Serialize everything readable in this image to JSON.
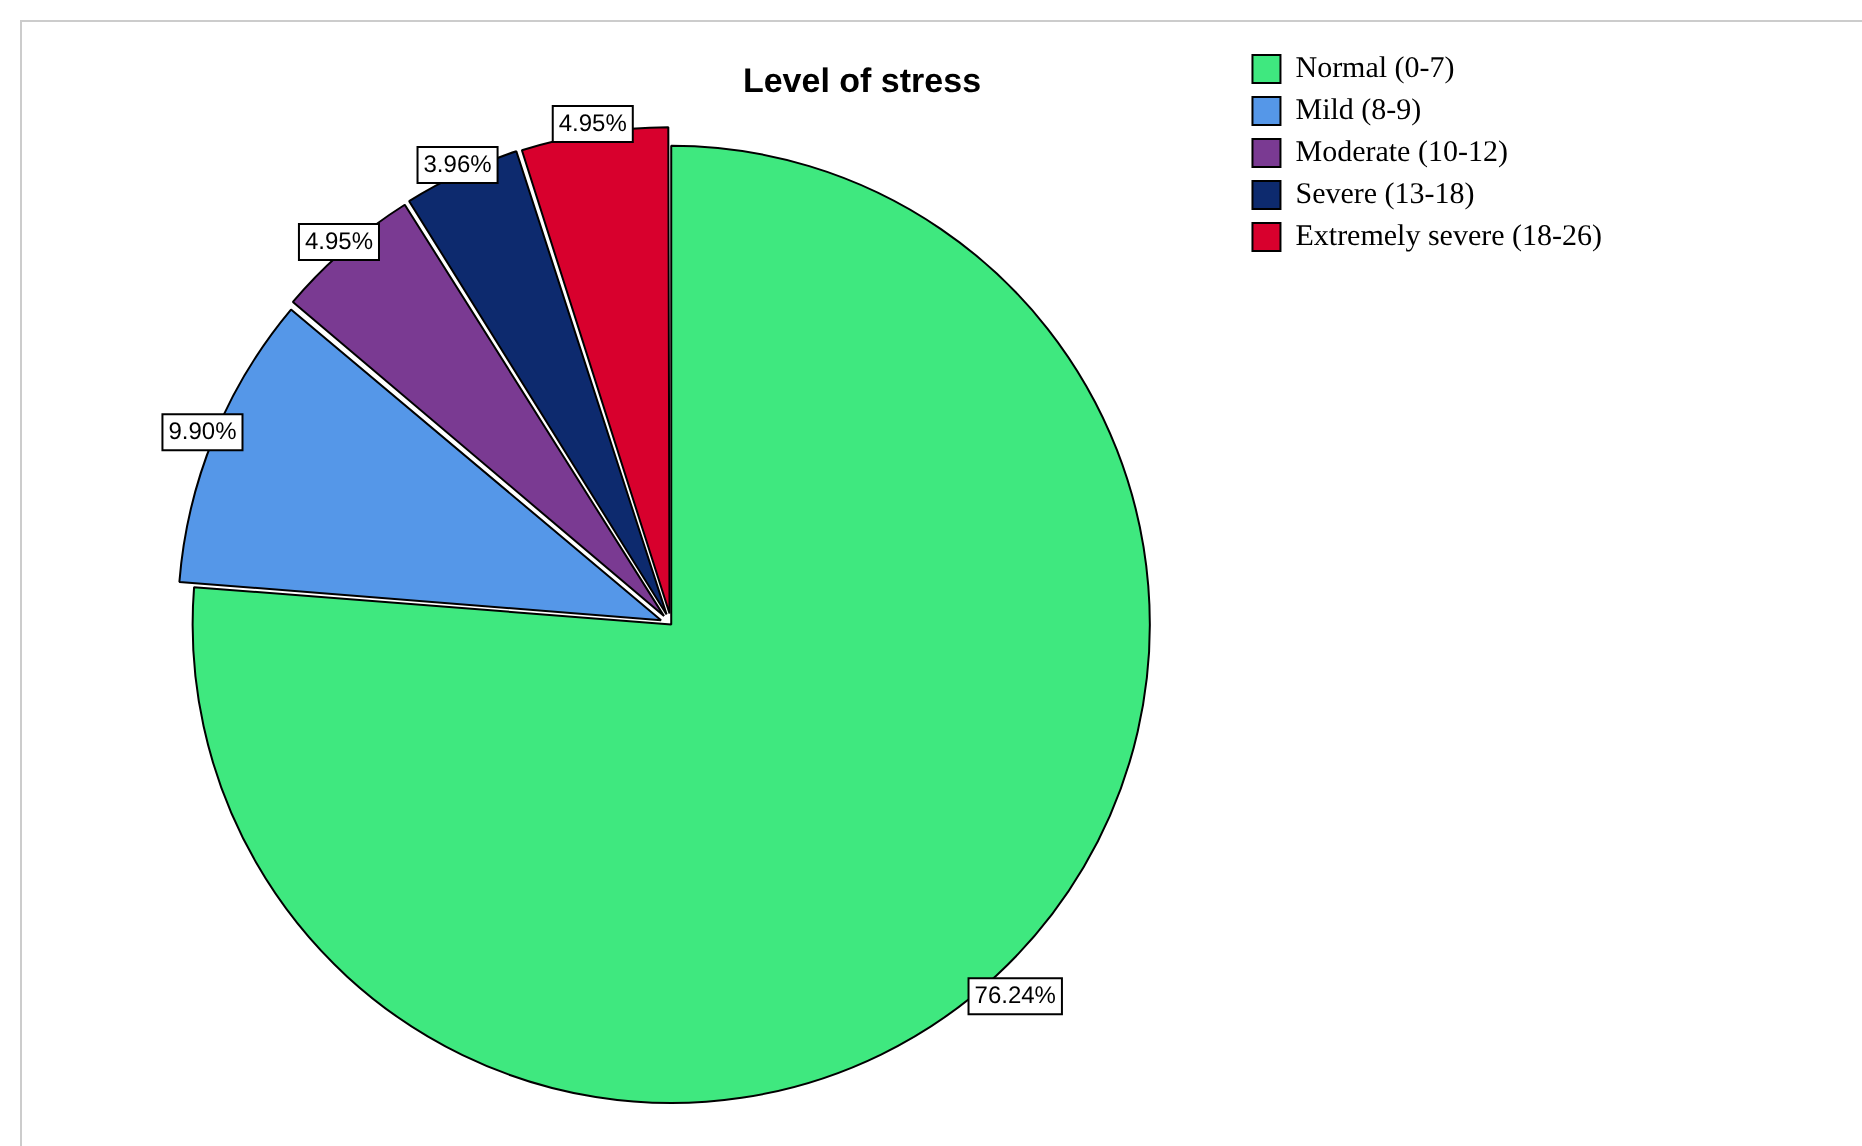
{
  "chart_data": {
    "type": "pie",
    "title": "Level of stress",
    "categories": [
      "Normal (0-7)",
      "Mild (8-9)",
      "Moderate (10-12)",
      "Severe (13-18)",
      "Extremely severe (18-26)"
    ],
    "values": [
      76.24,
      9.9,
      4.95,
      3.96,
      4.95
    ],
    "value_labels": [
      "76.24%",
      "9.90%",
      "4.95%",
      "3.96%",
      "4.95%"
    ],
    "colors": [
      "#3fe87f",
      "#5597e8",
      "#7a3a92",
      "#0d2a6e",
      "#d8002d"
    ],
    "legend": "top right"
  }
}
